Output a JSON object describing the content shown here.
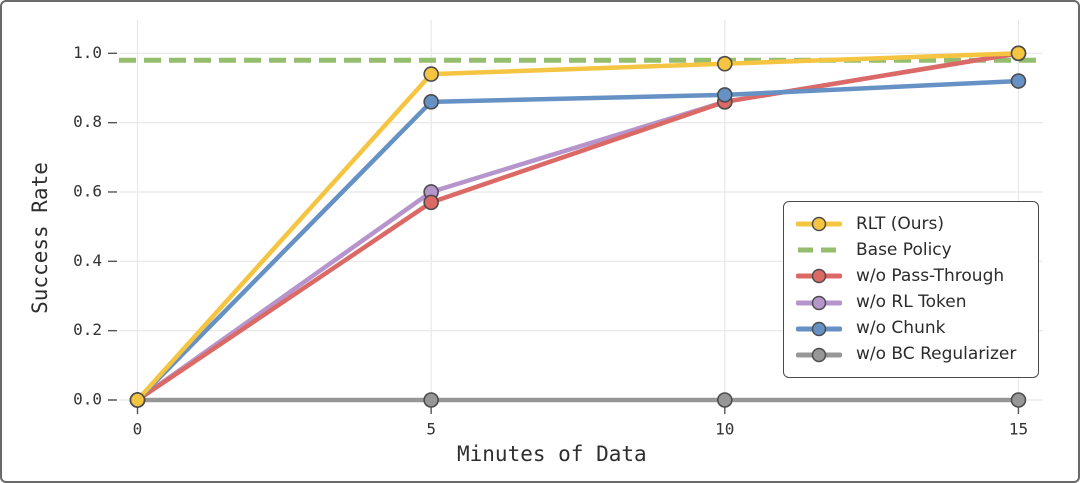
{
  "figure": {
    "background": "#ffffff",
    "border_color": "#6a6a6a"
  },
  "chart_data": {
    "type": "line",
    "title": "",
    "xlabel": "Minutes of Data",
    "ylabel": "Success Rate",
    "x": [
      0,
      5,
      10,
      15
    ],
    "xtick_labels": [
      "0",
      "5",
      "10",
      "15"
    ],
    "ytick_labels": [
      "0.0",
      "0.2",
      "0.4",
      "0.6",
      "0.8",
      "1.0"
    ],
    "yticks": [
      0.0,
      0.2,
      0.4,
      0.6,
      0.8,
      1.0
    ],
    "xlim": [
      -0.32,
      15.43
    ],
    "ylim": [
      -0.04,
      1.09
    ],
    "grid": true,
    "legend_position": "lower-right",
    "grid_color": "#e8e8e8",
    "tick_color": "#555555",
    "tick_label_color": "#333333",
    "marker_edge_color": "#4c4c4c",
    "series": [
      {
        "name": "RLT (Ours)",
        "color": "#F5C542",
        "style": "solid-marker",
        "values": [
          0.0,
          0.94,
          0.97,
          1.0
        ]
      },
      {
        "name": "Base Policy",
        "color": "#94BE6E",
        "style": "dashed-hline",
        "value": 0.98
      },
      {
        "name": "w/o Pass-Through",
        "color": "#DB6A66",
        "style": "solid-marker",
        "values": [
          0.0,
          0.57,
          0.86,
          1.0
        ]
      },
      {
        "name": "w/o RL Token",
        "color": "#B695CC",
        "style": "solid-marker",
        "values": [
          0.0,
          0.6,
          0.86,
          1.0
        ]
      },
      {
        "name": "w/o Chunk",
        "color": "#6591C4",
        "style": "solid-marker",
        "values": [
          0.0,
          0.86,
          0.88,
          0.92
        ]
      },
      {
        "name": "w/o BC Regularizer",
        "color": "#979797",
        "style": "solid-marker",
        "values": [
          0.0,
          0.0,
          0.0,
          0.0
        ]
      }
    ]
  }
}
